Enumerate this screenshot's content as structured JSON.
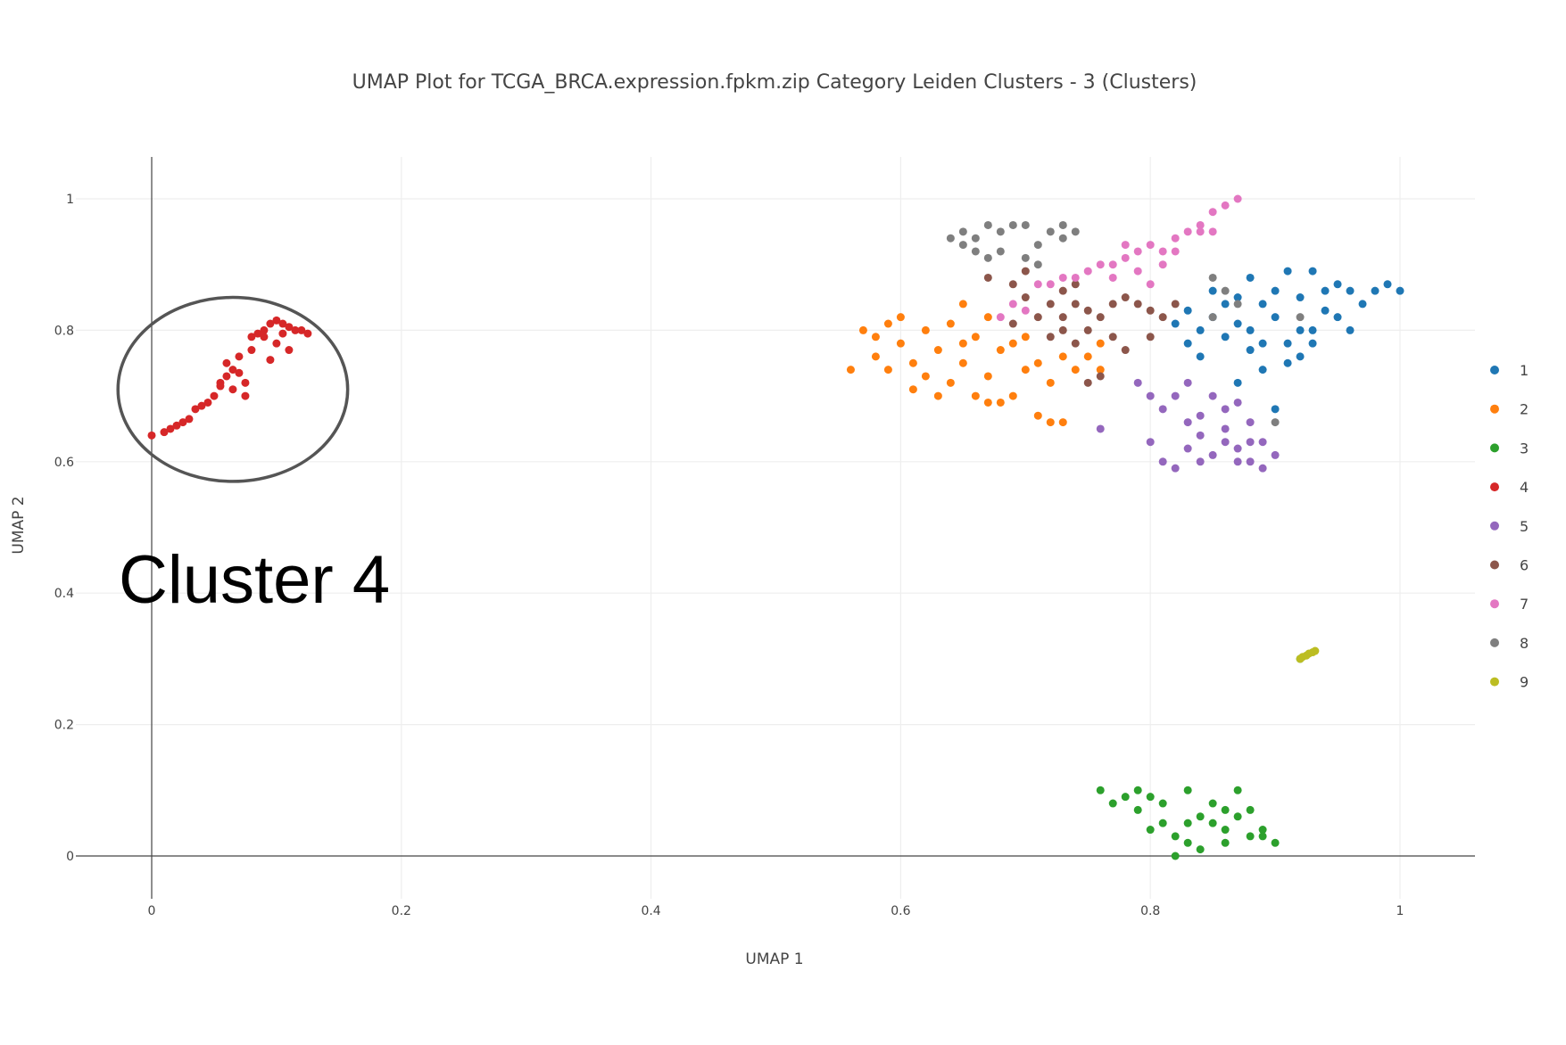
{
  "chart_data": {
    "type": "scatter",
    "title": "UMAP Plot for TCGA_BRCA.expression.fpkm.zip Category Leiden Clusters - 3 (Clusters)",
    "xlabel": "UMAP 1",
    "ylabel": "UMAP 2",
    "xlim": [
      -0.06,
      1.06
    ],
    "ylim": [
      -0.06,
      1.06
    ],
    "x_ticks": [
      0,
      0.2,
      0.4,
      0.6,
      0.8,
      1
    ],
    "y_ticks": [
      0,
      0.2,
      0.4,
      0.6,
      0.8,
      1
    ],
    "x_tick_labels": [
      "0",
      "0.2",
      "0.4",
      "0.6",
      "0.8",
      "1"
    ],
    "y_tick_labels": [
      "0",
      "0.2",
      "0.4",
      "0.6",
      "0.8",
      "1"
    ],
    "grid": true,
    "legend_position": "right",
    "annotation": {
      "text": "Cluster 4",
      "circle_center": [
        0.065,
        0.71
      ],
      "circle_radius_x": 0.092,
      "circle_radius_y": 0.14
    },
    "series": [
      {
        "name": "1",
        "color": "#1f77b4",
        "points": [
          [
            0.83,
            0.83
          ],
          [
            0.85,
            0.86
          ],
          [
            0.87,
            0.81
          ],
          [
            0.88,
            0.77
          ],
          [
            0.9,
            0.82
          ],
          [
            0.92,
            0.85
          ],
          [
            0.94,
            0.83
          ],
          [
            0.95,
            0.87
          ],
          [
            0.96,
            0.86
          ],
          [
            0.98,
            0.86
          ],
          [
            0.99,
            0.87
          ],
          [
            1.0,
            0.86
          ],
          [
            0.86,
            0.79
          ],
          [
            0.89,
            0.74
          ],
          [
            0.91,
            0.78
          ],
          [
            0.93,
            0.8
          ],
          [
            0.95,
            0.82
          ],
          [
            0.97,
            0.84
          ],
          [
            0.84,
            0.76
          ],
          [
            0.87,
            0.72
          ],
          [
            0.9,
            0.68
          ],
          [
            0.92,
            0.76
          ],
          [
            0.82,
            0.81
          ],
          [
            0.86,
            0.84
          ],
          [
            0.88,
            0.88
          ],
          [
            0.91,
            0.89
          ],
          [
            0.93,
            0.89
          ],
          [
            0.94,
            0.86
          ],
          [
            0.96,
            0.8
          ],
          [
            0.89,
            0.84
          ],
          [
            0.85,
            0.82
          ],
          [
            0.83,
            0.78
          ],
          [
            0.88,
            0.8
          ],
          [
            0.9,
            0.86
          ],
          [
            0.92,
            0.8
          ],
          [
            0.87,
            0.85
          ],
          [
            0.84,
            0.8
          ],
          [
            0.89,
            0.78
          ],
          [
            0.91,
            0.75
          ],
          [
            0.93,
            0.78
          ]
        ]
      },
      {
        "name": "2",
        "color": "#ff7f0e",
        "points": [
          [
            0.57,
            0.8
          ],
          [
            0.58,
            0.76
          ],
          [
            0.59,
            0.74
          ],
          [
            0.6,
            0.78
          ],
          [
            0.61,
            0.75
          ],
          [
            0.62,
            0.8
          ],
          [
            0.63,
            0.77
          ],
          [
            0.64,
            0.72
          ],
          [
            0.65,
            0.75
          ],
          [
            0.66,
            0.79
          ],
          [
            0.67,
            0.73
          ],
          [
            0.68,
            0.77
          ],
          [
            0.69,
            0.7
          ],
          [
            0.7,
            0.74
          ],
          [
            0.71,
            0.67
          ],
          [
            0.72,
            0.66
          ],
          [
            0.73,
            0.66
          ],
          [
            0.74,
            0.74
          ],
          [
            0.75,
            0.76
          ],
          [
            0.76,
            0.78
          ],
          [
            0.6,
            0.82
          ],
          [
            0.62,
            0.73
          ],
          [
            0.64,
            0.81
          ],
          [
            0.65,
            0.84
          ],
          [
            0.67,
            0.69
          ],
          [
            0.68,
            0.69
          ],
          [
            0.7,
            0.79
          ],
          [
            0.63,
            0.7
          ],
          [
            0.66,
            0.7
          ],
          [
            0.58,
            0.79
          ],
          [
            0.61,
            0.71
          ],
          [
            0.69,
            0.78
          ],
          [
            0.72,
            0.72
          ],
          [
            0.76,
            0.74
          ],
          [
            0.56,
            0.74
          ],
          [
            0.65,
            0.78
          ],
          [
            0.67,
            0.82
          ],
          [
            0.71,
            0.75
          ],
          [
            0.73,
            0.76
          ],
          [
            0.59,
            0.81
          ]
        ]
      },
      {
        "name": "3",
        "color": "#2ca02c",
        "points": [
          [
            0.76,
            0.1
          ],
          [
            0.78,
            0.09
          ],
          [
            0.79,
            0.07
          ],
          [
            0.8,
            0.04
          ],
          [
            0.81,
            0.05
          ],
          [
            0.82,
            0.03
          ],
          [
            0.82,
            0.0
          ],
          [
            0.83,
            0.02
          ],
          [
            0.84,
            0.06
          ],
          [
            0.85,
            0.08
          ],
          [
            0.86,
            0.04
          ],
          [
            0.87,
            0.1
          ],
          [
            0.88,
            0.07
          ],
          [
            0.88,
            0.03
          ],
          [
            0.89,
            0.04
          ],
          [
            0.9,
            0.02
          ],
          [
            0.8,
            0.09
          ],
          [
            0.83,
            0.1
          ],
          [
            0.86,
            0.02
          ],
          [
            0.81,
            0.08
          ],
          [
            0.84,
            0.01
          ],
          [
            0.85,
            0.05
          ],
          [
            0.87,
            0.06
          ],
          [
            0.79,
            0.1
          ],
          [
            0.77,
            0.08
          ],
          [
            0.83,
            0.05
          ],
          [
            0.86,
            0.07
          ],
          [
            0.89,
            0.03
          ],
          [
            0.92,
            0.3
          ]
        ]
      },
      {
        "name": "4",
        "color": "#d62728",
        "points": [
          [
            0.0,
            0.64
          ],
          [
            0.01,
            0.645
          ],
          [
            0.015,
            0.65
          ],
          [
            0.02,
            0.655
          ],
          [
            0.025,
            0.66
          ],
          [
            0.03,
            0.665
          ],
          [
            0.035,
            0.68
          ],
          [
            0.04,
            0.685
          ],
          [
            0.045,
            0.69
          ],
          [
            0.05,
            0.7
          ],
          [
            0.055,
            0.72
          ],
          [
            0.06,
            0.73
          ],
          [
            0.065,
            0.74
          ],
          [
            0.07,
            0.735
          ],
          [
            0.075,
            0.72
          ],
          [
            0.08,
            0.79
          ],
          [
            0.085,
            0.795
          ],
          [
            0.09,
            0.8
          ],
          [
            0.095,
            0.81
          ],
          [
            0.1,
            0.815
          ],
          [
            0.105,
            0.81
          ],
          [
            0.11,
            0.805
          ],
          [
            0.115,
            0.8
          ],
          [
            0.12,
            0.8
          ],
          [
            0.125,
            0.795
          ],
          [
            0.06,
            0.75
          ],
          [
            0.07,
            0.76
          ],
          [
            0.08,
            0.77
          ],
          [
            0.1,
            0.78
          ],
          [
            0.11,
            0.77
          ],
          [
            0.095,
            0.755
          ],
          [
            0.065,
            0.71
          ],
          [
            0.075,
            0.7
          ],
          [
            0.055,
            0.715
          ],
          [
            0.09,
            0.79
          ],
          [
            0.105,
            0.795
          ]
        ]
      },
      {
        "name": "5",
        "color": "#9467bd",
        "points": [
          [
            0.81,
            0.6
          ],
          [
            0.82,
            0.59
          ],
          [
            0.83,
            0.62
          ],
          [
            0.84,
            0.64
          ],
          [
            0.85,
            0.61
          ],
          [
            0.86,
            0.63
          ],
          [
            0.87,
            0.62
          ],
          [
            0.88,
            0.6
          ],
          [
            0.89,
            0.59
          ],
          [
            0.89,
            0.63
          ],
          [
            0.9,
            0.61
          ],
          [
            0.88,
            0.66
          ],
          [
            0.86,
            0.68
          ],
          [
            0.85,
            0.7
          ],
          [
            0.83,
            0.72
          ],
          [
            0.82,
            0.7
          ],
          [
            0.84,
            0.67
          ],
          [
            0.87,
            0.69
          ],
          [
            0.79,
            0.72
          ],
          [
            0.8,
            0.7
          ],
          [
            0.81,
            0.68
          ],
          [
            0.86,
            0.65
          ],
          [
            0.88,
            0.63
          ],
          [
            0.84,
            0.6
          ],
          [
            0.87,
            0.6
          ],
          [
            0.76,
            0.65
          ],
          [
            0.8,
            0.63
          ],
          [
            0.83,
            0.66
          ]
        ]
      },
      {
        "name": "6",
        "color": "#8c564b",
        "points": [
          [
            0.67,
            0.88
          ],
          [
            0.69,
            0.87
          ],
          [
            0.7,
            0.85
          ],
          [
            0.71,
            0.82
          ],
          [
            0.72,
            0.84
          ],
          [
            0.73,
            0.82
          ],
          [
            0.73,
            0.86
          ],
          [
            0.74,
            0.84
          ],
          [
            0.75,
            0.83
          ],
          [
            0.76,
            0.82
          ],
          [
            0.77,
            0.84
          ],
          [
            0.78,
            0.85
          ],
          [
            0.79,
            0.84
          ],
          [
            0.8,
            0.83
          ],
          [
            0.81,
            0.82
          ],
          [
            0.82,
            0.84
          ],
          [
            0.75,
            0.8
          ],
          [
            0.77,
            0.79
          ],
          [
            0.74,
            0.78
          ],
          [
            0.76,
            0.73
          ],
          [
            0.75,
            0.72
          ],
          [
            0.72,
            0.79
          ],
          [
            0.69,
            0.81
          ],
          [
            0.78,
            0.77
          ],
          [
            0.8,
            0.79
          ],
          [
            0.74,
            0.87
          ],
          [
            0.7,
            0.89
          ],
          [
            0.73,
            0.8
          ]
        ]
      },
      {
        "name": "7",
        "color": "#e377c2",
        "points": [
          [
            0.71,
            0.87
          ],
          [
            0.73,
            0.88
          ],
          [
            0.74,
            0.88
          ],
          [
            0.75,
            0.89
          ],
          [
            0.76,
            0.9
          ],
          [
            0.77,
            0.9
          ],
          [
            0.78,
            0.91
          ],
          [
            0.78,
            0.93
          ],
          [
            0.79,
            0.92
          ],
          [
            0.8,
            0.93
          ],
          [
            0.81,
            0.92
          ],
          [
            0.82,
            0.94
          ],
          [
            0.83,
            0.95
          ],
          [
            0.84,
            0.96
          ],
          [
            0.85,
            0.98
          ],
          [
            0.86,
            0.99
          ],
          [
            0.87,
            1.0
          ],
          [
            0.84,
            0.95
          ],
          [
            0.82,
            0.92
          ],
          [
            0.79,
            0.89
          ],
          [
            0.8,
            0.87
          ],
          [
            0.77,
            0.88
          ],
          [
            0.72,
            0.87
          ],
          [
            0.69,
            0.84
          ],
          [
            0.68,
            0.82
          ],
          [
            0.7,
            0.83
          ],
          [
            0.81,
            0.9
          ],
          [
            0.85,
            0.95
          ]
        ]
      },
      {
        "name": "8",
        "color": "#7f7f7f",
        "points": [
          [
            0.64,
            0.94
          ],
          [
            0.65,
            0.93
          ],
          [
            0.65,
            0.95
          ],
          [
            0.66,
            0.94
          ],
          [
            0.67,
            0.96
          ],
          [
            0.68,
            0.95
          ],
          [
            0.69,
            0.96
          ],
          [
            0.7,
            0.96
          ],
          [
            0.71,
            0.93
          ],
          [
            0.72,
            0.95
          ],
          [
            0.73,
            0.96
          ],
          [
            0.74,
            0.95
          ],
          [
            0.66,
            0.92
          ],
          [
            0.67,
            0.91
          ],
          [
            0.7,
            0.91
          ],
          [
            0.71,
            0.9
          ],
          [
            0.73,
            0.94
          ],
          [
            0.68,
            0.92
          ],
          [
            0.85,
            0.88
          ],
          [
            0.86,
            0.86
          ],
          [
            0.85,
            0.82
          ],
          [
            0.9,
            0.66
          ],
          [
            0.92,
            0.82
          ],
          [
            0.87,
            0.84
          ]
        ]
      },
      {
        "name": "9",
        "color": "#bcbd22",
        "points": [
          [
            0.92,
            0.3
          ],
          [
            0.925,
            0.305
          ],
          [
            0.93,
            0.31
          ],
          [
            0.927,
            0.308
          ],
          [
            0.922,
            0.303
          ],
          [
            0.932,
            0.312
          ]
        ]
      }
    ]
  }
}
